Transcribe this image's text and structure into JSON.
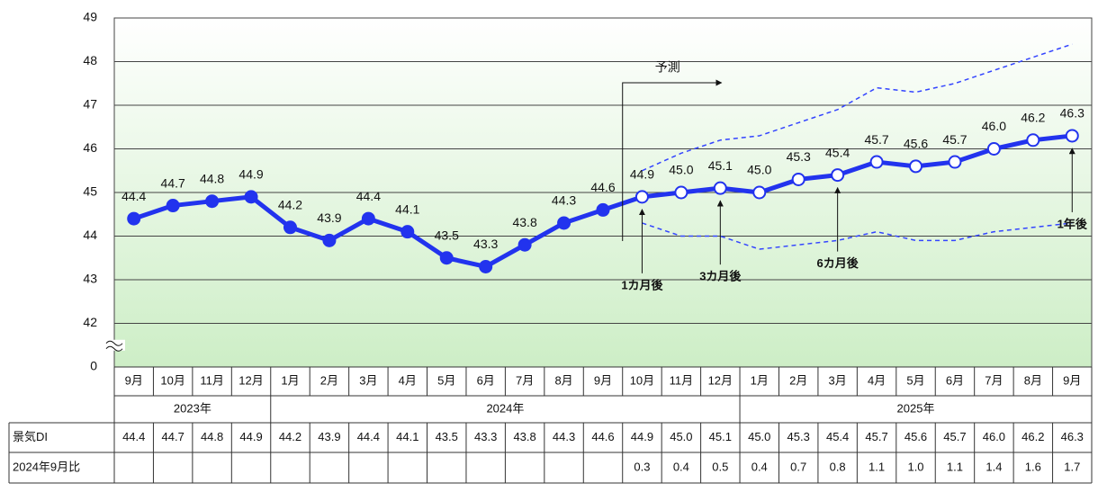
{
  "chart_data": {
    "type": "line",
    "categories": [
      "9月",
      "10月",
      "11月",
      "12月",
      "1月",
      "2月",
      "3月",
      "4月",
      "5月",
      "6月",
      "7月",
      "8月",
      "9月",
      "10月",
      "11月",
      "12月",
      "1月",
      "2月",
      "3月",
      "4月",
      "5月",
      "6月",
      "7月",
      "8月",
      "9月"
    ],
    "years": [
      "2023年",
      null,
      null,
      null,
      "2024年",
      null,
      null,
      null,
      null,
      null,
      null,
      null,
      null,
      null,
      null,
      null,
      "2025年",
      null,
      null,
      null,
      null,
      null,
      null,
      null,
      null
    ],
    "ylim": [
      0,
      49
    ],
    "yticks": [
      0,
      42,
      43,
      44,
      45,
      46,
      47,
      48,
      49
    ],
    "axis_break": true,
    "grid": true,
    "forecast_start": 13,
    "series": [
      {
        "name": "景気DI",
        "color": "#2233ee",
        "markers": true,
        "values": [
          44.4,
          44.7,
          44.8,
          44.9,
          44.2,
          43.9,
          44.4,
          44.1,
          43.5,
          43.3,
          43.8,
          44.3,
          44.6,
          44.9,
          45.0,
          45.1,
          45.0,
          45.3,
          45.4,
          45.7,
          45.6,
          45.7,
          46.0,
          46.2,
          46.3
        ],
        "value_labels": [
          "44.4",
          "44.7",
          "44.8",
          "44.9",
          "44.2",
          "43.9",
          "44.4",
          "44.1",
          "43.5",
          "43.3",
          "43.8",
          "44.3",
          "44.6",
          "44.9",
          "45.0",
          "45.1",
          "45.0",
          "45.3",
          "45.4",
          "45.7",
          "45.6",
          "45.7",
          "46.0",
          "46.2",
          "46.3"
        ]
      },
      {
        "color": "#3344ff",
        "dash": true,
        "values": [
          null,
          null,
          null,
          null,
          null,
          null,
          null,
          null,
          null,
          null,
          null,
          null,
          null,
          45.5,
          45.9,
          46.2,
          46.3,
          46.6,
          46.9,
          47.4,
          47.3,
          47.5,
          47.8,
          48.1,
          48.4
        ]
      },
      {
        "color": "#3344ff",
        "dash": true,
        "values": [
          null,
          null,
          null,
          null,
          null,
          null,
          null,
          null,
          null,
          null,
          null,
          null,
          null,
          44.3,
          44.0,
          44.0,
          43.7,
          43.8,
          43.9,
          44.1,
          43.9,
          43.9,
          44.1,
          44.2,
          44.3
        ]
      }
    ],
    "comparison": {
      "name": "2024年9月比",
      "values": [
        null,
        null,
        null,
        null,
        null,
        null,
        null,
        null,
        null,
        null,
        null,
        null,
        null,
        0.3,
        0.4,
        0.5,
        0.4,
        0.7,
        0.8,
        1.1,
        1.0,
        1.1,
        1.4,
        1.6,
        1.7
      ],
      "value_labels": [
        null,
        null,
        null,
        null,
        null,
        null,
        null,
        null,
        null,
        null,
        null,
        null,
        null,
        "0.3",
        "0.4",
        "0.5",
        "0.4",
        "0.7",
        "0.8",
        "1.1",
        "1.0",
        "1.1",
        "1.4",
        "1.6",
        "1.7"
      ]
    },
    "annotations": [
      {
        "text": "予測",
        "at": 13,
        "kind": "forecast"
      },
      {
        "text": "1カ月後",
        "at": 13
      },
      {
        "text": "3カ月後",
        "at": 15
      },
      {
        "text": "6カ月後",
        "at": 18
      },
      {
        "text": "1年後",
        "at": 24
      }
    ]
  }
}
